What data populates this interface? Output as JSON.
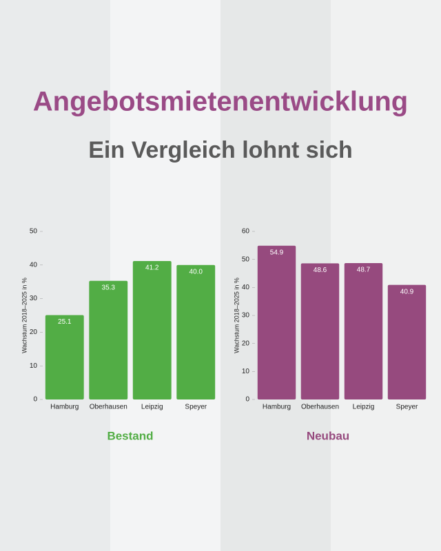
{
  "title": "Angebotsmietenentwicklung",
  "subtitle": "Ein Vergleich lohnt sich",
  "chart_data": [
    {
      "type": "bar",
      "title": "Bestand",
      "ylabel": "Wachstum 2018–2025 in %",
      "categories": [
        "Hamburg",
        "Oberhausen",
        "Leipzig",
        "Speyer"
      ],
      "values": [
        25.1,
        35.3,
        41.2,
        40.0
      ],
      "value_labels": [
        "25.1",
        "35.3",
        "41.2",
        "40.0"
      ],
      "color": "#52ad45",
      "ylim": [
        0,
        50
      ],
      "yticks": [
        0,
        10,
        20,
        30,
        40,
        50
      ]
    },
    {
      "type": "bar",
      "title": "Neubau",
      "ylabel": "Wachstum 2018–2025 in %",
      "categories": [
        "Hamburg",
        "Oberhausen",
        "Leipzig",
        "Speyer"
      ],
      "values": [
        54.9,
        48.6,
        48.7,
        40.9
      ],
      "value_labels": [
        "54.9",
        "48.6",
        "48.7",
        "40.9"
      ],
      "color": "#964a7e",
      "ylim": [
        0,
        60
      ],
      "yticks": [
        0,
        10,
        20,
        30,
        40,
        50,
        60
      ]
    }
  ]
}
